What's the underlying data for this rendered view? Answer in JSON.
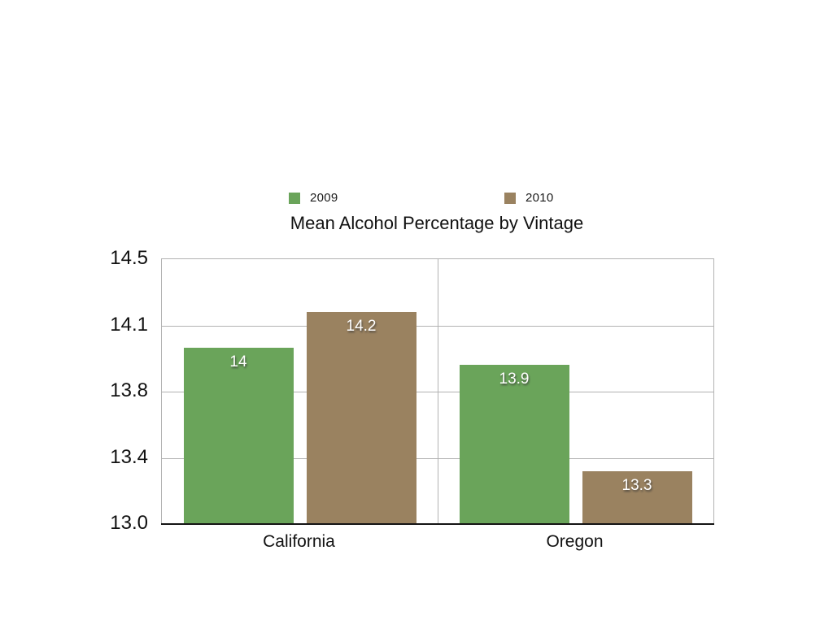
{
  "page": {
    "background": "#ffffff"
  },
  "chart_data": {
    "type": "bar",
    "title": "Mean Alcohol Percentage by Vintage",
    "categories": [
      "California",
      "Oregon"
    ],
    "series": [
      {
        "name": "2009",
        "color": "#6aa45a",
        "values": [
          14,
          13.9
        ],
        "labels": [
          "14",
          "13.9"
        ]
      },
      {
        "name": "2010",
        "color": "#9a8260",
        "values": [
          14.2,
          13.3
        ],
        "labels": [
          "14.2",
          "13.3"
        ]
      }
    ],
    "ylim": [
      13.0,
      14.5
    ],
    "yticks": [
      {
        "label": "13.0",
        "value": 13.0
      },
      {
        "label": "13.4",
        "value": 13.375
      },
      {
        "label": "13.8",
        "value": 13.75
      },
      {
        "label": "14.1",
        "value": 14.125
      },
      {
        "label": "14.5",
        "value": 14.5
      }
    ],
    "grid": true,
    "legend_position": "top",
    "colors": {
      "grid": "#b2b2b2",
      "axis": "#141414",
      "text": "#111111",
      "data_label": "#ffffff"
    }
  }
}
